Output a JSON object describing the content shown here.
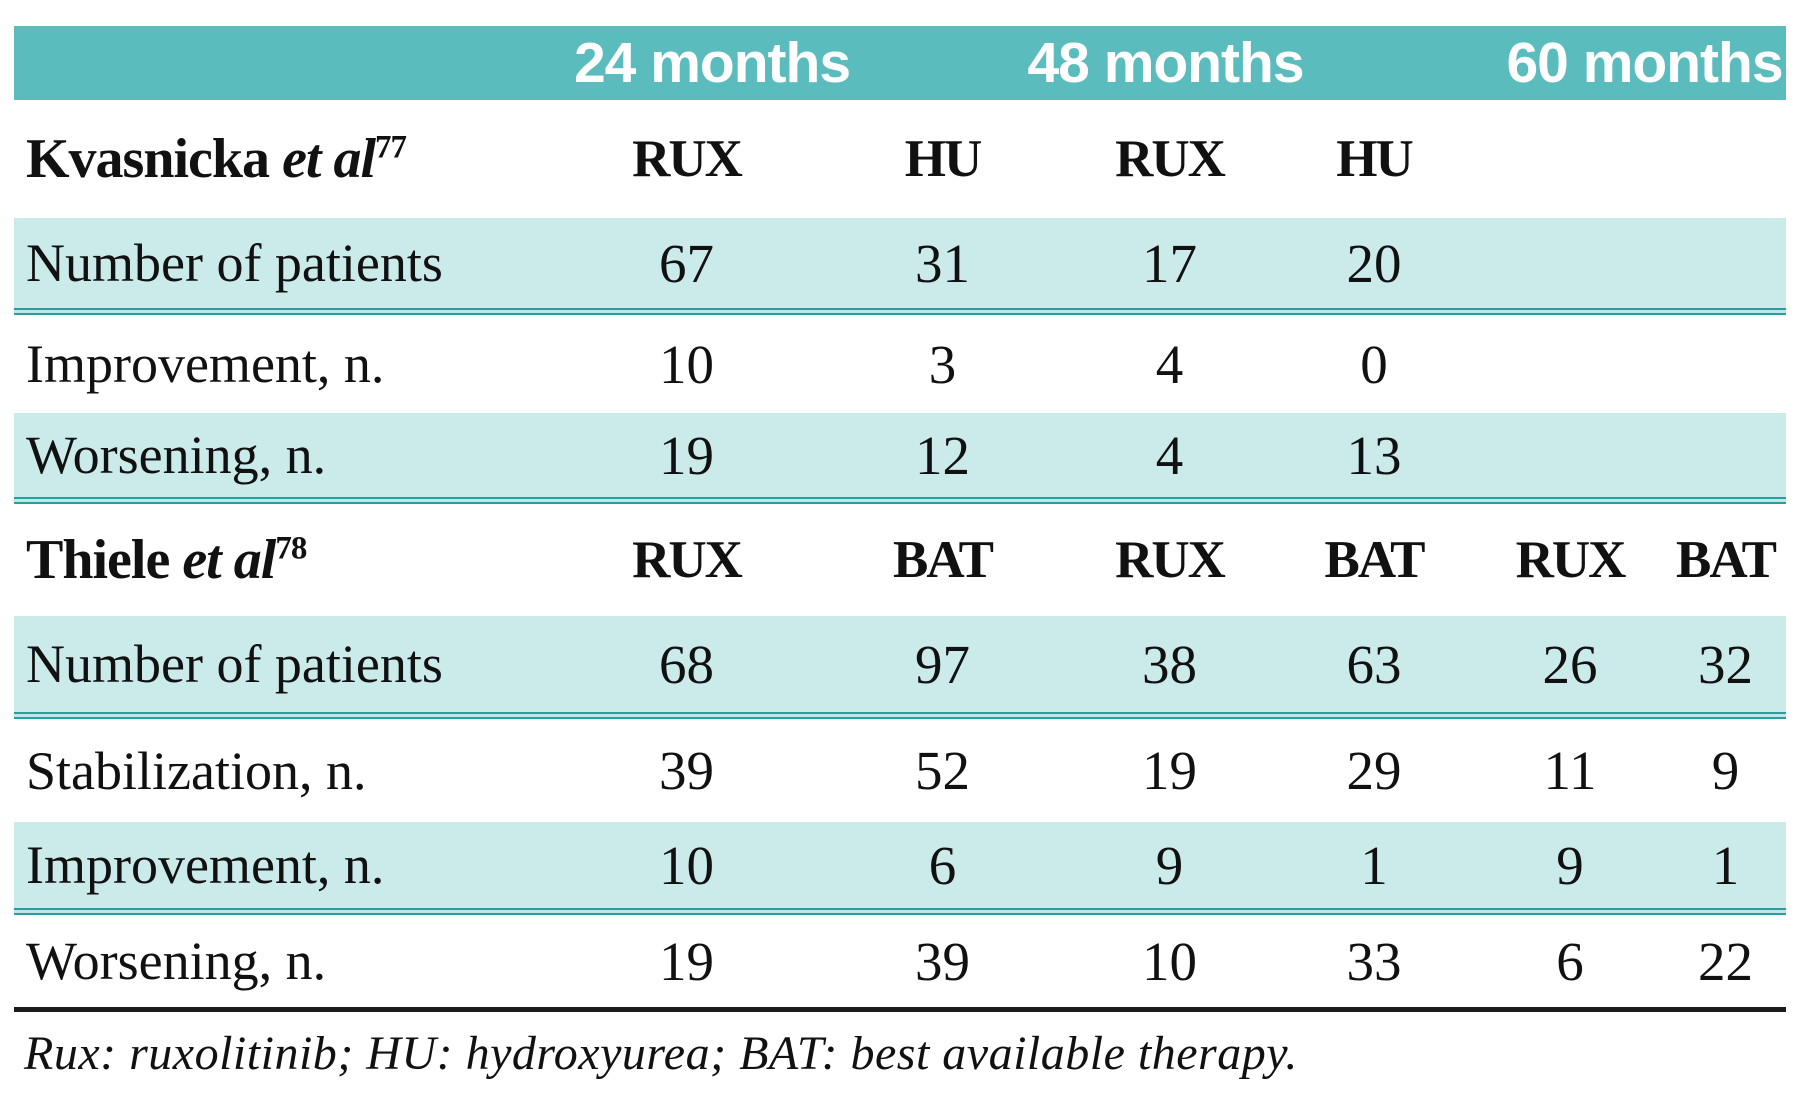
{
  "colors": {
    "header_band_teal": "#5bbcbd",
    "shaded_row_teal": "#cbebeb",
    "divider_teal": "#2e9b9c",
    "footnote_line_black": "#1c1c1c",
    "text_black": "#111111"
  },
  "header": {
    "months": [
      "24 months",
      "48 months",
      "60 months"
    ]
  },
  "sections": [
    {
      "study_name": "Kvasnicka",
      "et_al": " et al",
      "reference_superscript": "77",
      "columns": [
        "RUX",
        "HU",
        "RUX",
        "HU",
        "",
        ""
      ],
      "rows": [
        {
          "label": "Number of patients",
          "values": [
            "67",
            "31",
            "17",
            "20",
            "",
            ""
          ]
        },
        {
          "label": "Improvement, n.",
          "values": [
            "10",
            "3",
            "4",
            "0",
            "",
            ""
          ]
        },
        {
          "label": "Worsening, n.",
          "values": [
            "19",
            "12",
            "4",
            "13",
            "",
            ""
          ]
        }
      ]
    },
    {
      "study_name": "Thiele",
      "et_al": " et al",
      "reference_superscript": "78",
      "columns": [
        "RUX",
        "BAT",
        "RUX",
        "BAT",
        "RUX",
        "BAT"
      ],
      "rows": [
        {
          "label": "Number of patients",
          "values": [
            "68",
            "97",
            "38",
            "63",
            "26",
            "32"
          ]
        },
        {
          "label": "Stabilization, n.",
          "values": [
            "39",
            "52",
            "19",
            "29",
            "11",
            "9"
          ]
        },
        {
          "label": "Improvement, n.",
          "values": [
            "10",
            "6",
            "9",
            "1",
            "9",
            "1"
          ]
        },
        {
          "label": "Worsening, n.",
          "values": [
            "19",
            "39",
            "10",
            "33",
            "6",
            "22"
          ]
        }
      ]
    }
  ],
  "footnote": {
    "text": "Rux: ruxolitinib; HU: hydroxyurea; BAT: best available therapy."
  }
}
